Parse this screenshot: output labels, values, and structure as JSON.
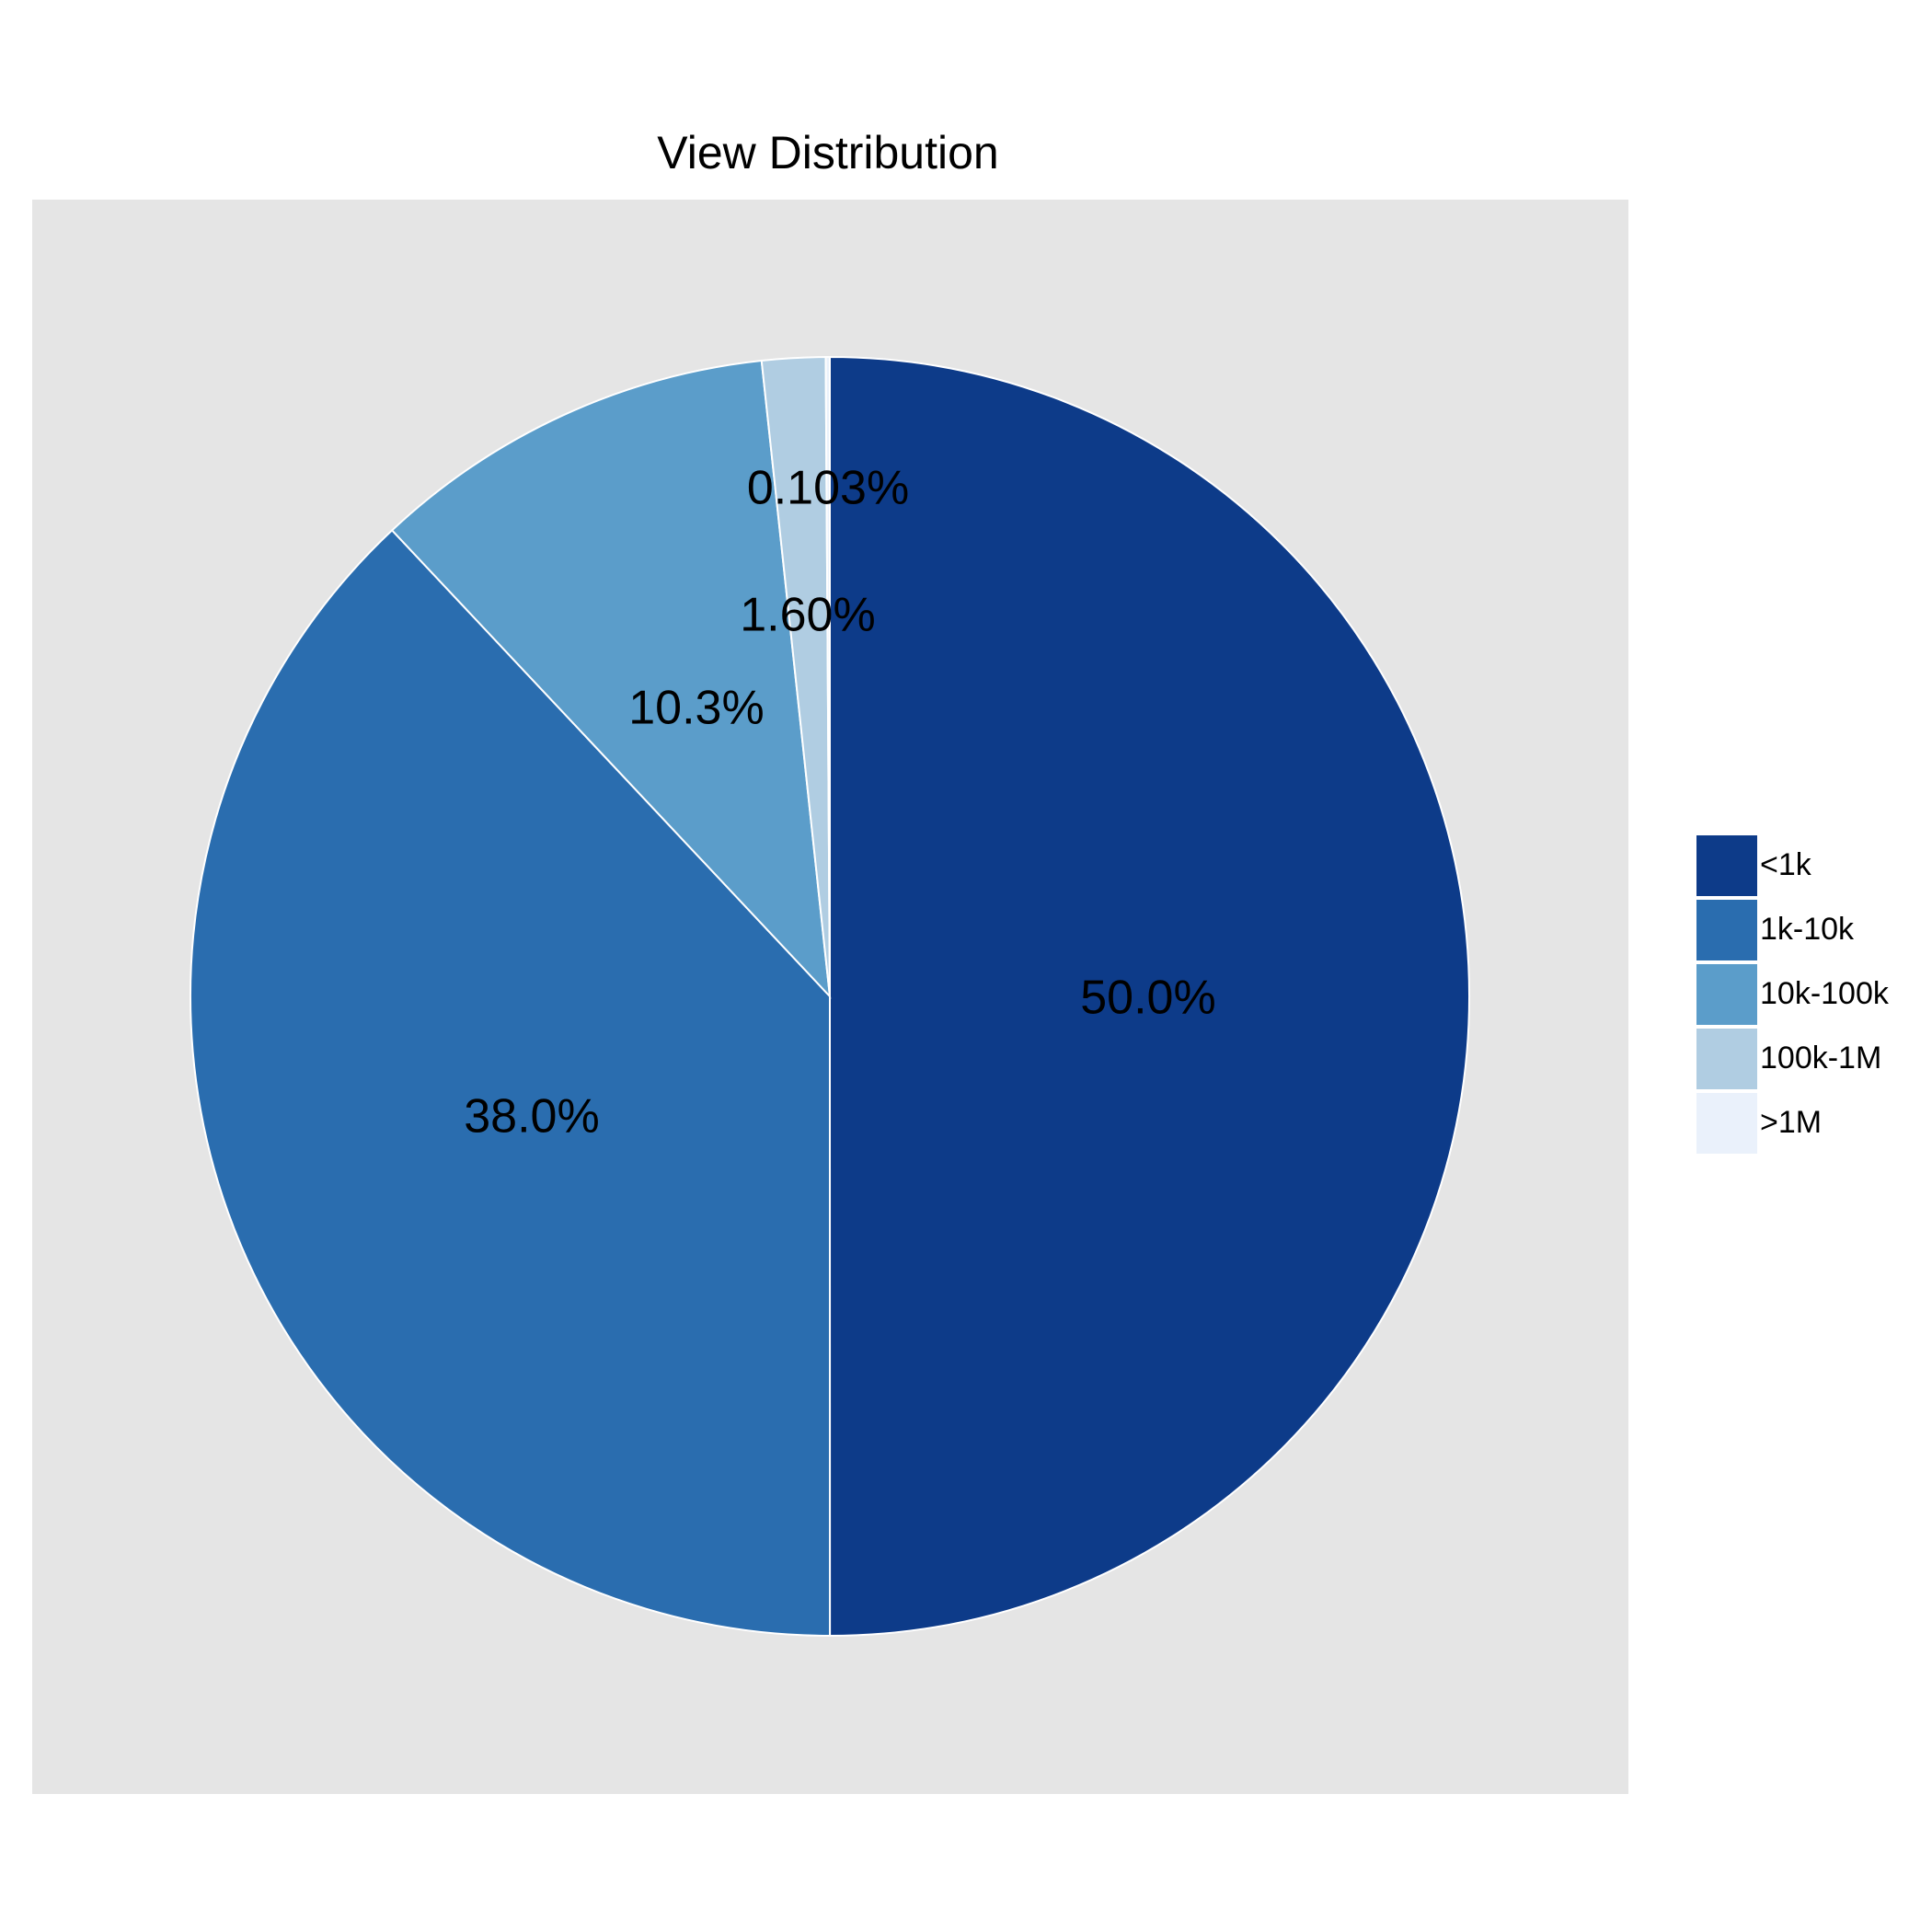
{
  "chart_data": {
    "type": "pie",
    "title": "View Distribution",
    "categories": [
      "<1k",
      "1k-10k",
      "10k-100k",
      "100k-1M",
      ">1M"
    ],
    "values": [
      50.0,
      38.0,
      10.3,
      1.6,
      0.103
    ],
    "labels": [
      "50.0%",
      "38.0%",
      "10.3%",
      "1.60%",
      "0.103%"
    ],
    "colors": [
      "#0d3b89",
      "#2a6daf",
      "#5b9dca",
      "#b0cde2",
      "#eaf1fb"
    ],
    "start": "12 o'clock",
    "direction": "clockwise",
    "legend_position": "right",
    "panel_background": "#e5e5e5"
  }
}
